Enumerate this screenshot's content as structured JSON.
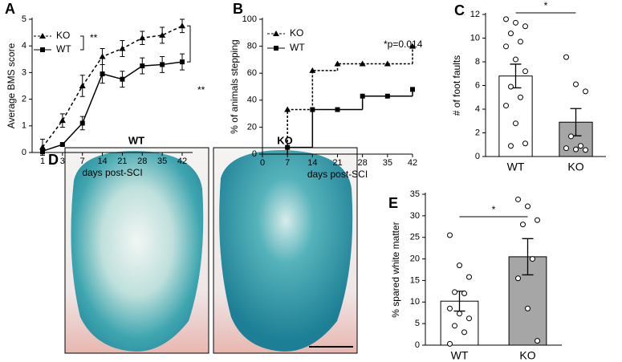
{
  "panel_d": {
    "panel_label": "D",
    "labels": [
      "WT",
      "KO"
    ]
  },
  "chart_data": [
    {
      "type": "line",
      "panel_label": "A",
      "ylabel": "Average BMS score",
      "xlabel": "days post-SCI",
      "categories": [
        "1",
        "3",
        "7",
        "14",
        "21",
        "28",
        "35",
        "42"
      ],
      "ylim": [
        0,
        5
      ],
      "yticks": [
        0,
        1,
        2,
        3,
        4,
        5
      ],
      "series": [
        {
          "name": "KO",
          "color": "#000000",
          "marker": "triangle",
          "dashed": true,
          "values": [
            0.2,
            1.2,
            2.5,
            3.6,
            3.9,
            4.3,
            4.4,
            4.75
          ],
          "errors": [
            0.3,
            0.25,
            0.4,
            0.3,
            0.3,
            0.25,
            0.3,
            0.25
          ]
        },
        {
          "name": "WT",
          "color": "#000000",
          "marker": "square",
          "dashed": false,
          "values": [
            0.05,
            0.3,
            1.1,
            2.95,
            2.75,
            3.25,
            3.3,
            3.4
          ],
          "errors": [
            0.1,
            0.05,
            0.25,
            0.35,
            0.3,
            0.3,
            0.3,
            0.3
          ]
        }
      ],
      "annotations": [
        "**",
        "**"
      ]
    },
    {
      "type": "step",
      "panel_label": "B",
      "ylabel": "% of animals stepping",
      "xlabel": "days post-SCI",
      "x": [
        7,
        14,
        21,
        28,
        35,
        42
      ],
      "xlim": [
        0,
        42
      ],
      "xticks": [
        0,
        7,
        14,
        21,
        28,
        35,
        42
      ],
      "ylim": [
        0,
        100
      ],
      "yticks": [
        0,
        20,
        40,
        60,
        80,
        100
      ],
      "series": [
        {
          "name": "KO",
          "color": "#000000",
          "marker": "triangle",
          "dashed": true,
          "values": [
            33,
            62,
            67,
            67,
            67,
            80
          ]
        },
        {
          "name": "WT",
          "color": "#000000",
          "marker": "square",
          "dashed": false,
          "values": [
            5,
            33,
            33,
            43,
            43,
            48
          ]
        }
      ],
      "annotations": [
        "*p=0.014"
      ]
    },
    {
      "type": "bar",
      "panel_label": "C",
      "ylabel": "# of foot faults",
      "categories": [
        "WT",
        "KO"
      ],
      "colors": [
        "#ffffff",
        "#a6a6a6"
      ],
      "values": [
        6.8,
        2.9
      ],
      "errors": [
        1.0,
        1.15
      ],
      "points": [
        [
          11.6,
          11.3,
          11.0,
          10.4,
          9.7,
          9.3,
          8.2,
          7.2,
          5.9,
          5.0,
          4.3,
          2.8,
          1.1,
          0.9
        ],
        [
          8.4,
          6.1,
          5.5,
          1.7,
          0.9,
          0.7,
          0.6,
          0.55
        ]
      ],
      "ylim": [
        0,
        12
      ],
      "yticks": [
        0,
        2,
        4,
        6,
        8,
        10,
        12
      ],
      "annotations": [
        "*"
      ]
    },
    {
      "type": "bar",
      "panel_label": "E",
      "ylabel": "% spared white matter",
      "categories": [
        "WT",
        "KO"
      ],
      "colors": [
        "#ffffff",
        "#a6a6a6"
      ],
      "values": [
        10.2,
        20.5
      ],
      "errors": [
        2.3,
        4.2
      ],
      "points": [
        [
          25.5,
          18.5,
          15.8,
          12.3,
          12.0,
          8.5,
          7.3,
          6.2,
          4.5,
          3.0,
          0.3
        ],
        [
          33.8,
          32.2,
          29.0,
          28.0,
          20.0,
          15.5,
          8.5,
          1.0
        ]
      ],
      "ylim": [
        0,
        35
      ],
      "yticks": [
        0,
        5,
        10,
        15,
        20,
        25,
        30,
        35
      ],
      "annotations": [
        "*"
      ]
    }
  ]
}
